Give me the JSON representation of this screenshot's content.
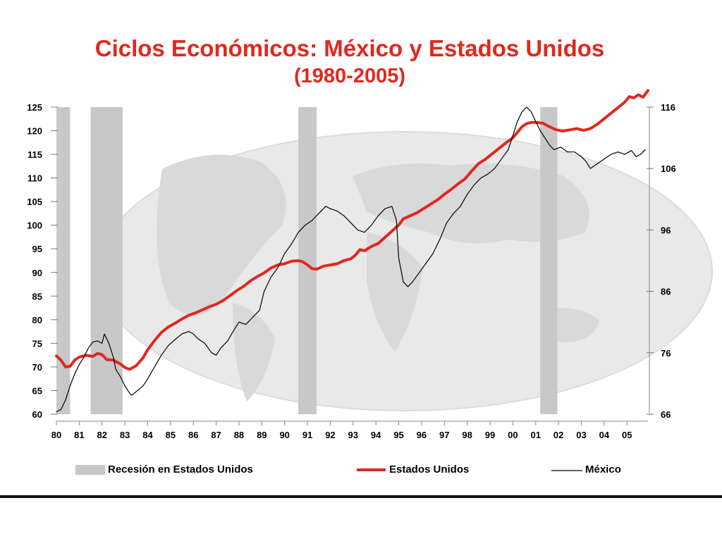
{
  "colors": {
    "accent": "#e0281e",
    "recession": "#c8c8c8",
    "mexico": "#000000",
    "usa": "#e0281e"
  },
  "chart_data": {
    "type": "line",
    "title": "Ciclos Económicos: México y Estados Unidos",
    "subtitle": "(1980-2005)",
    "x_range": [
      1980.0,
      2005.92
    ],
    "x_tick_labels": [
      "80",
      "81",
      "82",
      "83",
      "84",
      "85",
      "86",
      "87",
      "88",
      "89",
      "90",
      "91",
      "92",
      "93",
      "94",
      "95",
      "96",
      "97",
      "98",
      "99",
      "00",
      "01",
      "02",
      "03",
      "04",
      "05"
    ],
    "left_axis": {
      "ylim": [
        60,
        125
      ],
      "ticks": [
        60,
        65,
        70,
        75,
        80,
        85,
        90,
        95,
        100,
        105,
        110,
        115,
        120,
        125
      ]
    },
    "right_axis": {
      "ylim": [
        66,
        116
      ],
      "ticks": [
        66,
        76,
        86,
        96,
        106,
        116
      ]
    },
    "recessions": [
      {
        "start": 1980.0,
        "end": 1980.6
      },
      {
        "start": 1981.5,
        "end": 1982.9
      },
      {
        "start": 1990.6,
        "end": 1991.4
      },
      {
        "start": 2001.2,
        "end": 2001.95
      }
    ],
    "series": [
      {
        "name": "Estados Unidos",
        "axis": "right",
        "color": "#e0281e",
        "points": [
          [
            1980.0,
            75.5
          ],
          [
            1980.2,
            74.8
          ],
          [
            1980.4,
            73.7
          ],
          [
            1980.6,
            73.8
          ],
          [
            1980.8,
            74.8
          ],
          [
            1981.0,
            75.3
          ],
          [
            1981.3,
            75.6
          ],
          [
            1981.6,
            75.4
          ],
          [
            1981.8,
            75.9
          ],
          [
            1982.0,
            75.7
          ],
          [
            1982.2,
            74.9
          ],
          [
            1982.5,
            74.8
          ],
          [
            1982.8,
            74.2
          ],
          [
            1983.0,
            73.6
          ],
          [
            1983.2,
            73.3
          ],
          [
            1983.5,
            73.9
          ],
          [
            1983.8,
            75.2
          ],
          [
            1984.0,
            76.5
          ],
          [
            1984.3,
            78.0
          ],
          [
            1984.6,
            79.3
          ],
          [
            1984.9,
            80.2
          ],
          [
            1985.2,
            80.8
          ],
          [
            1985.5,
            81.5
          ],
          [
            1985.8,
            82.1
          ],
          [
            1986.1,
            82.5
          ],
          [
            1986.4,
            83.0
          ],
          [
            1986.7,
            83.5
          ],
          [
            1987.0,
            83.9
          ],
          [
            1987.3,
            84.5
          ],
          [
            1987.6,
            85.3
          ],
          [
            1987.9,
            86.1
          ],
          [
            1988.2,
            86.8
          ],
          [
            1988.5,
            87.7
          ],
          [
            1988.8,
            88.4
          ],
          [
            1989.1,
            89.0
          ],
          [
            1989.4,
            89.8
          ],
          [
            1989.7,
            90.3
          ],
          [
            1990.0,
            90.5
          ],
          [
            1990.3,
            90.9
          ],
          [
            1990.6,
            91.0
          ],
          [
            1990.8,
            90.8
          ],
          [
            1991.0,
            90.3
          ],
          [
            1991.2,
            89.7
          ],
          [
            1991.4,
            89.6
          ],
          [
            1991.7,
            90.1
          ],
          [
            1992.0,
            90.3
          ],
          [
            1992.3,
            90.5
          ],
          [
            1992.6,
            91.0
          ],
          [
            1992.9,
            91.3
          ],
          [
            1993.1,
            91.9
          ],
          [
            1993.3,
            92.8
          ],
          [
            1993.5,
            92.6
          ],
          [
            1993.8,
            93.3
          ],
          [
            1994.1,
            93.8
          ],
          [
            1994.4,
            94.8
          ],
          [
            1994.7,
            95.8
          ],
          [
            1995.0,
            96.8
          ],
          [
            1995.2,
            97.8
          ],
          [
            1995.5,
            98.3
          ],
          [
            1995.8,
            98.8
          ],
          [
            1996.1,
            99.5
          ],
          [
            1996.4,
            100.2
          ],
          [
            1996.7,
            100.9
          ],
          [
            1997.0,
            101.8
          ],
          [
            1997.3,
            102.6
          ],
          [
            1997.6,
            103.5
          ],
          [
            1997.9,
            104.3
          ],
          [
            1998.2,
            105.6
          ],
          [
            1998.5,
            106.8
          ],
          [
            1998.8,
            107.5
          ],
          [
            1999.1,
            108.4
          ],
          [
            1999.4,
            109.3
          ],
          [
            1999.7,
            110.2
          ],
          [
            2000.0,
            111.0
          ],
          [
            2000.2,
            111.9
          ],
          [
            2000.4,
            112.8
          ],
          [
            2000.6,
            113.3
          ],
          [
            2000.8,
            113.5
          ],
          [
            2001.0,
            113.5
          ],
          [
            2001.3,
            113.4
          ],
          [
            2001.6,
            112.8
          ],
          [
            2001.9,
            112.3
          ],
          [
            2002.2,
            112.1
          ],
          [
            2002.5,
            112.3
          ],
          [
            2002.8,
            112.5
          ],
          [
            2003.1,
            112.2
          ],
          [
            2003.4,
            112.5
          ],
          [
            2003.7,
            113.2
          ],
          [
            2004.0,
            114.1
          ],
          [
            2004.3,
            115.0
          ],
          [
            2004.6,
            115.9
          ],
          [
            2004.9,
            116.8
          ],
          [
            2005.1,
            117.7
          ],
          [
            2005.3,
            117.5
          ],
          [
            2005.5,
            118.0
          ],
          [
            2005.7,
            117.6
          ],
          [
            2005.92,
            118.7
          ]
        ]
      },
      {
        "name": "México",
        "axis": "left",
        "color": "#000000",
        "points": [
          [
            1980.0,
            60.5
          ],
          [
            1980.2,
            61.0
          ],
          [
            1980.4,
            63.0
          ],
          [
            1980.6,
            66.0
          ],
          [
            1980.8,
            68.5
          ],
          [
            1981.0,
            70.5
          ],
          [
            1981.2,
            72.0
          ],
          [
            1981.4,
            74.0
          ],
          [
            1981.6,
            75.3
          ],
          [
            1981.8,
            75.5
          ],
          [
            1982.0,
            75.0
          ],
          [
            1982.1,
            77.0
          ],
          [
            1982.3,
            75.0
          ],
          [
            1982.5,
            72.0
          ],
          [
            1982.6,
            69.5
          ],
          [
            1982.8,
            68.0
          ],
          [
            1983.0,
            66.0
          ],
          [
            1983.2,
            64.5
          ],
          [
            1983.3,
            64.0
          ],
          [
            1983.5,
            64.8
          ],
          [
            1983.8,
            66.0
          ],
          [
            1984.0,
            67.5
          ],
          [
            1984.3,
            70.0
          ],
          [
            1984.6,
            72.5
          ],
          [
            1984.9,
            74.5
          ],
          [
            1985.2,
            75.8
          ],
          [
            1985.5,
            77.0
          ],
          [
            1985.8,
            77.5
          ],
          [
            1986.0,
            77.0
          ],
          [
            1986.2,
            76.0
          ],
          [
            1986.5,
            75.0
          ],
          [
            1986.8,
            73.0
          ],
          [
            1987.0,
            72.5
          ],
          [
            1987.2,
            74.0
          ],
          [
            1987.5,
            75.5
          ],
          [
            1987.8,
            78.0
          ],
          [
            1988.0,
            79.5
          ],
          [
            1988.3,
            79.0
          ],
          [
            1988.6,
            80.5
          ],
          [
            1988.9,
            82.0
          ],
          [
            1989.1,
            86.0
          ],
          [
            1989.4,
            89.0
          ],
          [
            1989.7,
            91.0
          ],
          [
            1990.0,
            94.0
          ],
          [
            1990.3,
            96.0
          ],
          [
            1990.6,
            98.5
          ],
          [
            1990.9,
            100.0
          ],
          [
            1991.2,
            101.0
          ],
          [
            1991.5,
            102.5
          ],
          [
            1991.8,
            104.0
          ],
          [
            1992.0,
            103.5
          ],
          [
            1992.3,
            103.0
          ],
          [
            1992.6,
            102.0
          ],
          [
            1992.9,
            100.5
          ],
          [
            1993.2,
            99.0
          ],
          [
            1993.5,
            98.5
          ],
          [
            1993.8,
            100.0
          ],
          [
            1994.1,
            102.0
          ],
          [
            1994.4,
            103.5
          ],
          [
            1994.7,
            104.0
          ],
          [
            1994.9,
            101.0
          ],
          [
            1995.0,
            93.0
          ],
          [
            1995.2,
            88.0
          ],
          [
            1995.4,
            87.0
          ],
          [
            1995.6,
            88.0
          ],
          [
            1995.9,
            90.0
          ],
          [
            1996.2,
            92.0
          ],
          [
            1996.5,
            94.0
          ],
          [
            1996.8,
            97.0
          ],
          [
            1997.1,
            100.5
          ],
          [
            1997.4,
            102.5
          ],
          [
            1997.7,
            104.0
          ],
          [
            1998.0,
            106.5
          ],
          [
            1998.3,
            108.5
          ],
          [
            1998.6,
            110.0
          ],
          [
            1998.9,
            110.8
          ],
          [
            1999.2,
            112.0
          ],
          [
            1999.5,
            114.0
          ],
          [
            1999.8,
            116.0
          ],
          [
            2000.0,
            119.0
          ],
          [
            2000.2,
            122.0
          ],
          [
            2000.4,
            124.0
          ],
          [
            2000.6,
            125.0
          ],
          [
            2000.8,
            124.0
          ],
          [
            2001.0,
            122.0
          ],
          [
            2001.2,
            120.0
          ],
          [
            2001.4,
            118.5
          ],
          [
            2001.6,
            117.0
          ],
          [
            2001.8,
            116.0
          ],
          [
            2002.1,
            116.5
          ],
          [
            2002.4,
            115.5
          ],
          [
            2002.7,
            115.5
          ],
          [
            2003.0,
            114.5
          ],
          [
            2003.2,
            113.5
          ],
          [
            2003.4,
            112.0
          ],
          [
            2003.7,
            113.0
          ],
          [
            2004.0,
            114.0
          ],
          [
            2004.3,
            115.0
          ],
          [
            2004.6,
            115.5
          ],
          [
            2004.9,
            115.0
          ],
          [
            2005.2,
            115.8
          ],
          [
            2005.4,
            114.5
          ],
          [
            2005.6,
            115.0
          ],
          [
            2005.8,
            116.0
          ]
        ]
      }
    ],
    "legend": [
      {
        "label": "Recesión en Estados Unidos",
        "kind": "recession"
      },
      {
        "label": "Estados Unidos",
        "kind": "usa"
      },
      {
        "label": "México",
        "kind": "mexico"
      }
    ],
    "legend_position": "bottom"
  }
}
